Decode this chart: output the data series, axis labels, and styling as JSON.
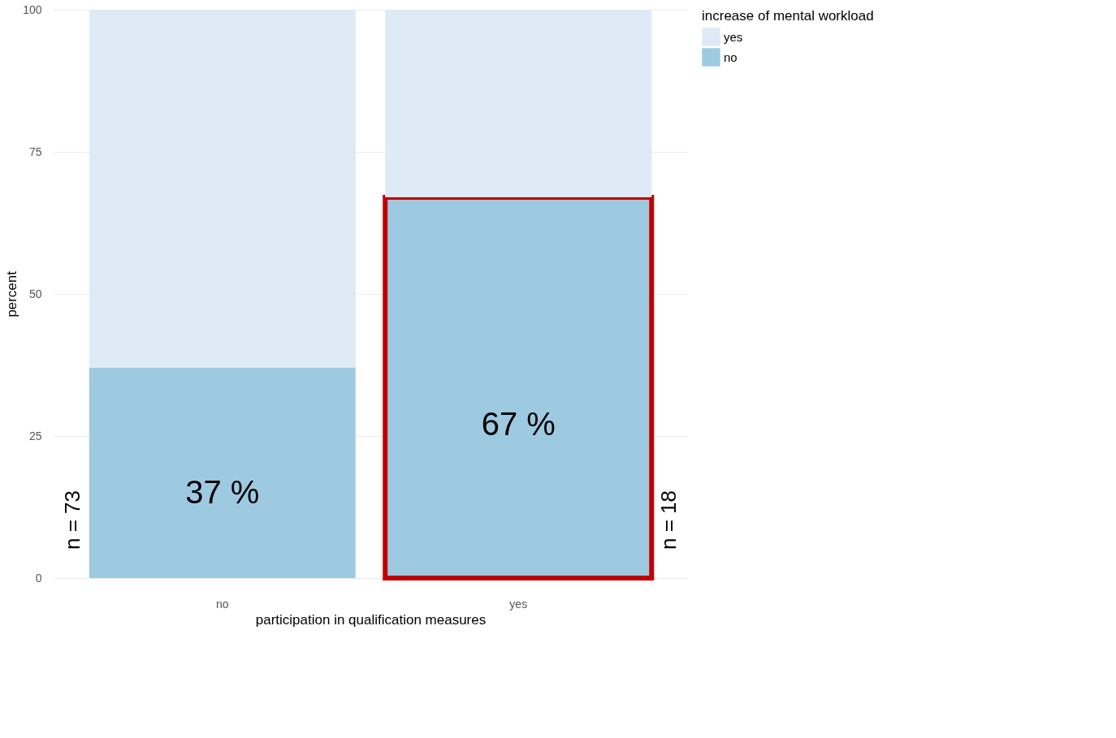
{
  "chart_data": {
    "type": "bar",
    "stacked": true,
    "xlabel": "participation in qualification measures",
    "ylabel": "percent",
    "legend_title": "increase of mental workload",
    "categories": [
      "no",
      "yes"
    ],
    "series": [
      {
        "name": "no",
        "color": "#9ecae1",
        "values": [
          37,
          67
        ],
        "value_labels": [
          "37 %",
          "67 %"
        ]
      },
      {
        "name": "yes",
        "color": "#deebf7",
        "values": [
          63,
          33
        ]
      }
    ],
    "ylim": [
      0,
      100
    ],
    "yticks": [
      0,
      25,
      50,
      75,
      100
    ],
    "grid": true,
    "legend": "right",
    "annotations": [
      "n = 73",
      "n = 18"
    ]
  }
}
